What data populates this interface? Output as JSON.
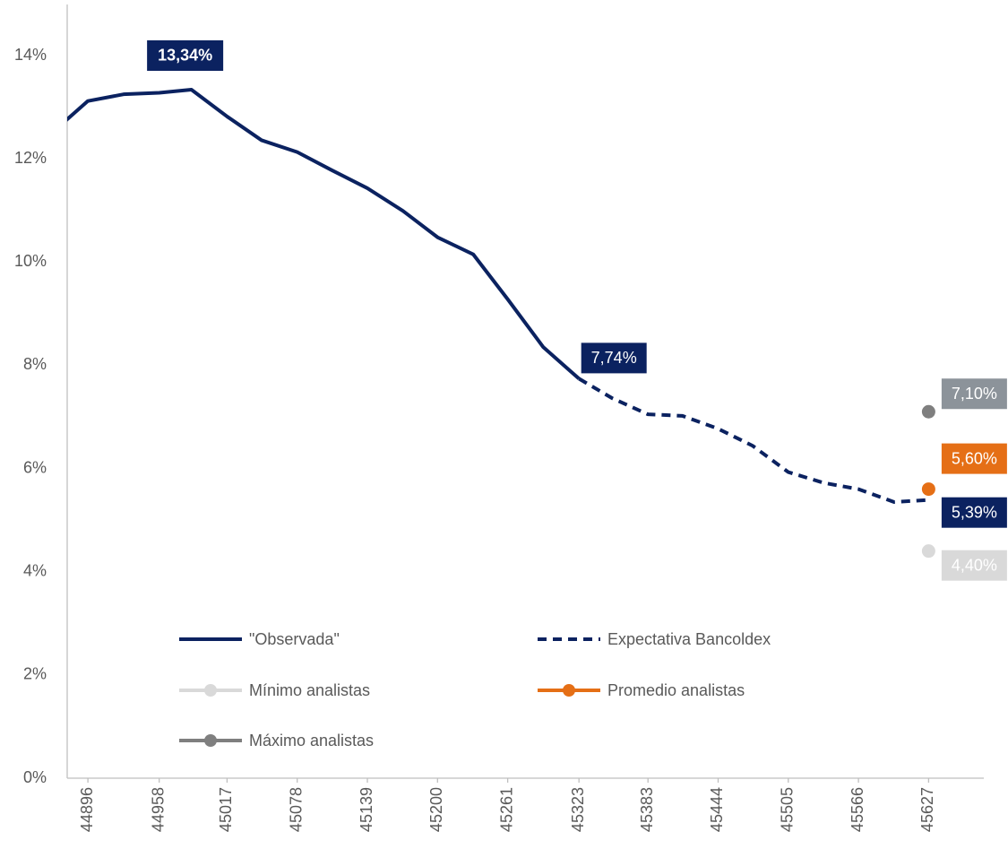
{
  "chart_data": {
    "type": "line",
    "xlim": [
      44878,
      45675
    ],
    "xticks": [
      44896,
      44958,
      45017,
      45078,
      45139,
      45200,
      45261,
      45323,
      45383,
      45444,
      45505,
      45566,
      45627
    ],
    "ylim": [
      0,
      14
    ],
    "yticks": [
      {
        "value": 0,
        "label": "0%"
      },
      {
        "value": 2,
        "label": "2%"
      },
      {
        "value": 4,
        "label": "4%"
      },
      {
        "value": 6,
        "label": "6%"
      },
      {
        "value": 8,
        "label": "8%"
      },
      {
        "value": 10,
        "label": "10%"
      },
      {
        "value": 12,
        "label": "12%"
      },
      {
        "value": 14,
        "label": "14%"
      }
    ],
    "series": [
      {
        "name": "\"Observada\"",
        "color": "#0b2260",
        "style": "solid",
        "x": [
          44866,
          44896,
          44927,
          44958,
          44986,
          45017,
          45047,
          45078,
          45108,
          45139,
          45170,
          45200,
          45231,
          45261,
          45292,
          45323
        ],
        "values": [
          12.53,
          13.12,
          13.25,
          13.28,
          13.34,
          12.82,
          12.36,
          12.13,
          11.78,
          11.43,
          10.99,
          10.48,
          10.15,
          9.28,
          8.35,
          7.74
        ],
        "value_labels": [
          null,
          null,
          null,
          null,
          "13,34%",
          null,
          null,
          null,
          null,
          null,
          null,
          null,
          null,
          null,
          null,
          "7,74%"
        ]
      },
      {
        "name": "Expectativa Bancoldex",
        "color": "#0b2260",
        "style": "dashed",
        "x": [
          45323,
          45352,
          45383,
          45413,
          45444,
          45474,
          45505,
          45536,
          45566,
          45597,
          45627
        ],
        "values": [
          7.74,
          7.36,
          7.05,
          7.02,
          6.77,
          6.44,
          5.93,
          5.72,
          5.6,
          5.35,
          5.39
        ],
        "value_labels": [
          null,
          null,
          null,
          null,
          null,
          null,
          null,
          null,
          null,
          null,
          "5,39%"
        ]
      },
      {
        "name": "Mínimo analistas",
        "color": "#d9d9d9",
        "style": "marker",
        "x": [
          45627
        ],
        "values": [
          4.4
        ],
        "value_labels": [
          "4,40%"
        ]
      },
      {
        "name": "Promedio analistas",
        "color": "#e56f16",
        "style": "marker",
        "x": [
          45627
        ],
        "values": [
          5.6
        ],
        "value_labels": [
          "5,60%"
        ]
      },
      {
        "name": "Máximo analistas",
        "color": "#7f7f7f",
        "style": "marker",
        "x": [
          45627
        ],
        "values": [
          7.1
        ],
        "value_labels": [
          "7,10%"
        ]
      }
    ]
  }
}
